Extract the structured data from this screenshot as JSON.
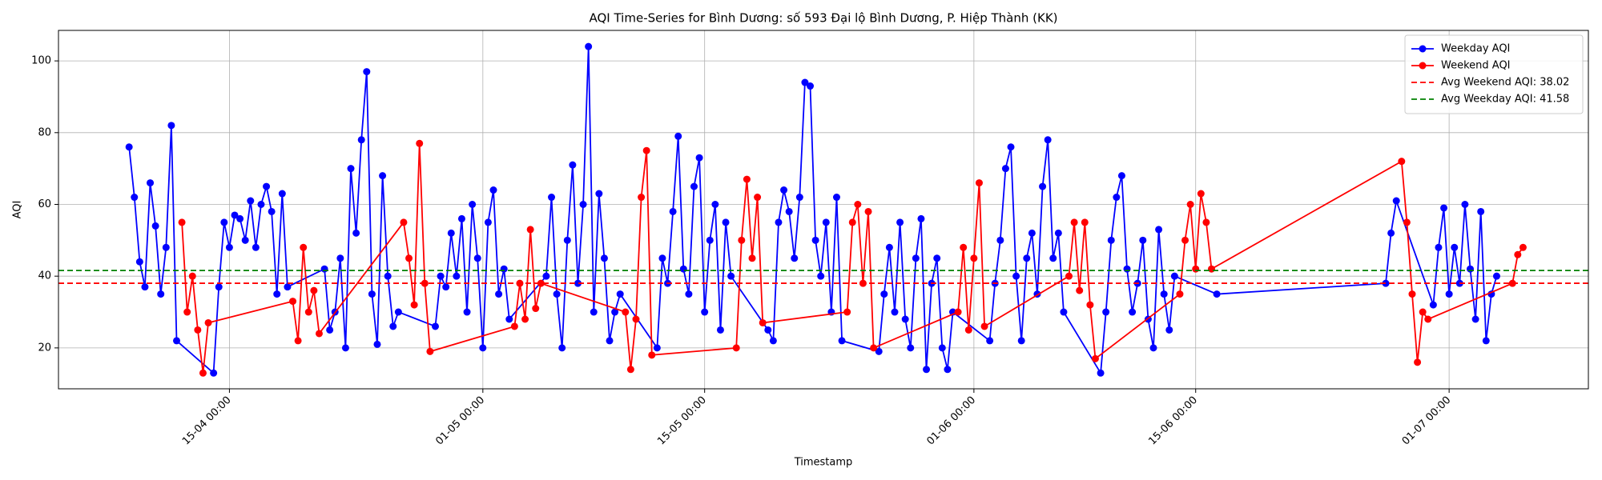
{
  "chart_data": {
    "type": "line",
    "title": "AQI Time-Series for Bình Dương: số 593 Đại lộ Bình Dương, P. Hiệp Thành (KK)",
    "xlabel": "Timestamp",
    "ylabel": "AQI",
    "xlim": [
      "04-04 05:00",
      "09-07 19:00"
    ],
    "xticks": [
      "15-04 00:00",
      "01-05 00:00",
      "15-05 00:00",
      "01-06 00:00",
      "15-06 00:00",
      "01-07 00:00"
    ],
    "ylim": [
      8.6,
      108.5
    ],
    "yticks": [
      20,
      40,
      60,
      80,
      100
    ],
    "grid": true,
    "legend": "upper right",
    "series": [
      {
        "name": "Weekday AQI",
        "color": "#0000ff",
        "x": [
          "08-04 16:00",
          "09-04 00:00",
          "09-04 08:00",
          "09-04 16:00",
          "10-04 00:00",
          "10-04 08:00",
          "10-04 16:00",
          "11-04 00:00",
          "11-04 08:00",
          "11-04 16:00",
          "14-04 00:00",
          "14-04 08:00",
          "14-04 16:00",
          "15-04 00:00",
          "15-04 08:00",
          "15-04 16:00",
          "16-04 00:00",
          "16-04 08:00",
          "16-04 16:00",
          "17-04 00:00",
          "17-04 08:00",
          "17-04 16:00",
          "18-04 00:00",
          "18-04 08:00",
          "18-04 16:00",
          "21-04 00:00",
          "21-04 08:00",
          "21-04 16:00",
          "22-04 00:00",
          "22-04 08:00",
          "22-04 16:00",
          "23-04 00:00",
          "23-04 08:00",
          "23-04 16:00",
          "24-04 00:00",
          "24-04 08:00",
          "24-04 16:00",
          "25-04 00:00",
          "25-04 08:00",
          "25-04 16:00",
          "28-04 00:00",
          "28-04 08:00",
          "28-04 16:00",
          "29-04 00:00",
          "29-04 08:00",
          "29-04 16:00",
          "30-04 00:00",
          "30-04 08:00",
          "30-04 16:00",
          "01-05 00:00",
          "01-05 08:00",
          "01-05 16:00",
          "02-05 00:00",
          "02-05 08:00",
          "02-05 16:00",
          "05-05 00:00",
          "05-05 08:00",
          "05-05 16:00",
          "06-05 00:00",
          "06-05 08:00",
          "06-05 16:00",
          "07-05 00:00",
          "07-05 08:00",
          "07-05 16:00",
          "08-05 00:00",
          "08-05 08:00",
          "08-05 16:00",
          "09-05 00:00",
          "09-05 08:00",
          "09-05 16:00",
          "12-05 00:00",
          "12-05 08:00",
          "12-05 16:00",
          "13-05 00:00",
          "13-05 08:00",
          "13-05 16:00",
          "14-05 00:00",
          "14-05 08:00",
          "14-05 16:00",
          "15-05 00:00",
          "15-05 08:00",
          "15-05 16:00",
          "16-05 00:00",
          "16-05 08:00",
          "16-05 16:00",
          "19-05 00:00",
          "19-05 08:00",
          "19-05 16:00",
          "20-05 00:00",
          "20-05 08:00",
          "20-05 16:00",
          "21-05 00:00",
          "21-05 08:00",
          "21-05 16:00",
          "22-05 00:00",
          "22-05 08:00",
          "22-05 16:00",
          "23-05 00:00",
          "23-05 08:00",
          "23-05 16:00",
          "26-05 00:00",
          "26-05 08:00",
          "26-05 16:00",
          "27-05 00:00",
          "27-05 08:00",
          "27-05 16:00",
          "28-05 00:00",
          "28-05 08:00",
          "28-05 16:00",
          "29-05 00:00",
          "29-05 08:00",
          "29-05 16:00",
          "30-05 00:00",
          "30-05 08:00",
          "30-05 16:00",
          "02-06 00:00",
          "02-06 08:00",
          "02-06 16:00",
          "03-06 00:00",
          "03-06 08:00",
          "03-06 16:00",
          "04-06 00:00",
          "04-06 08:00",
          "04-06 16:00",
          "05-06 00:00",
          "05-06 08:00",
          "05-06 16:00",
          "06-06 00:00",
          "06-06 08:00",
          "06-06 16:00",
          "09-06 00:00",
          "09-06 08:00",
          "09-06 16:00",
          "10-06 00:00",
          "10-06 08:00",
          "10-06 16:00",
          "11-06 00:00",
          "11-06 08:00",
          "11-06 16:00",
          "12-06 00:00",
          "12-06 08:00",
          "12-06 16:00",
          "13-06 00:00",
          "13-06 08:00",
          "13-06 16:00",
          "16-06 08:00",
          "27-06 00:00",
          "27-06 08:00",
          "27-06 16:00",
          "30-06 00:00",
          "30-06 08:00",
          "30-06 16:00",
          "01-07 00:00",
          "01-07 08:00",
          "01-07 16:00",
          "02-07 00:00",
          "02-07 08:00",
          "02-07 16:00",
          "03-07 00:00",
          "03-07 08:00",
          "03-07 16:00",
          "04-07 00:00"
        ],
        "values": [
          76,
          62,
          44,
          37,
          66,
          54,
          35,
          48,
          82,
          22,
          13,
          37,
          55,
          48,
          57,
          56,
          50,
          61,
          48,
          60,
          65,
          58,
          35,
          63,
          37,
          42,
          25,
          30,
          45,
          20,
          70,
          52,
          78,
          97,
          35,
          21,
          68,
          40,
          26,
          30,
          26,
          40,
          37,
          52,
          40,
          56,
          30,
          60,
          45,
          20,
          55,
          64,
          35,
          42,
          28,
          40,
          62,
          35,
          20,
          50,
          71,
          38,
          60,
          104,
          30,
          63,
          45,
          22,
          30,
          35,
          20,
          45,
          38,
          58,
          79,
          42,
          35,
          65,
          73,
          30,
          50,
          60,
          25,
          55,
          40,
          25,
          22,
          55,
          64,
          58,
          45,
          62,
          94,
          93,
          50,
          40,
          55,
          30,
          62,
          22,
          19,
          35,
          48,
          30,
          55,
          28,
          20,
          45,
          56,
          14,
          38,
          45,
          20,
          14,
          30,
          22,
          38,
          50,
          70,
          76,
          40,
          22,
          45,
          52,
          35,
          65,
          78,
          45,
          52,
          30,
          13,
          30,
          50,
          62,
          68,
          42,
          30,
          38,
          50,
          28,
          20,
          53,
          35,
          25,
          40,
          35,
          38,
          52,
          61,
          32,
          48,
          59,
          35,
          48,
          38,
          60,
          42,
          28,
          58,
          22,
          35,
          40
        ]
      },
      {
        "name": "Weekend AQI",
        "color": "#ff0000",
        "x": [
          "12-04 00:00",
          "12-04 08:00",
          "12-04 16:00",
          "13-04 00:00",
          "13-04 08:00",
          "13-04 16:00",
          "19-04 00:00",
          "19-04 08:00",
          "19-04 16:00",
          "20-04 00:00",
          "20-04 08:00",
          "20-04 16:00",
          "26-04 00:00",
          "26-04 08:00",
          "26-04 16:00",
          "27-04 00:00",
          "27-04 08:00",
          "27-04 16:00",
          "03-05 00:00",
          "03-05 08:00",
          "03-05 16:00",
          "04-05 00:00",
          "04-05 08:00",
          "04-05 16:00",
          "10-05 00:00",
          "10-05 08:00",
          "10-05 16:00",
          "11-05 00:00",
          "11-05 08:00",
          "11-05 16:00",
          "17-05 00:00",
          "17-05 08:00",
          "17-05 16:00",
          "18-05 00:00",
          "18-05 08:00",
          "18-05 16:00",
          "24-05 00:00",
          "24-05 08:00",
          "24-05 16:00",
          "25-05 00:00",
          "25-05 08:00",
          "25-05 16:00",
          "31-05 00:00",
          "31-05 08:00",
          "31-05 16:00",
          "01-06 00:00",
          "01-06 08:00",
          "01-06 16:00",
          "07-06 00:00",
          "07-06 08:00",
          "07-06 16:00",
          "08-06 00:00",
          "08-06 08:00",
          "08-06 16:00",
          "14-06 00:00",
          "14-06 08:00",
          "14-06 16:00",
          "15-06 00:00",
          "15-06 08:00",
          "15-06 16:00",
          "16-06 00:00",
          "28-06 00:00",
          "28-06 08:00",
          "28-06 16:00",
          "29-06 00:00",
          "29-06 08:00",
          "29-06 16:00",
          "05-07 00:00",
          "05-07 08:00",
          "05-07 16:00"
        ],
        "values": [
          55,
          30,
          40,
          25,
          13,
          27,
          33,
          22,
          48,
          30,
          36,
          24,
          55,
          45,
          32,
          77,
          38,
          19,
          26,
          38,
          28,
          53,
          31,
          38,
          30,
          14,
          28,
          62,
          75,
          18,
          20,
          50,
          67,
          45,
          62,
          27,
          30,
          55,
          60,
          38,
          58,
          20,
          30,
          48,
          25,
          45,
          66,
          26,
          40,
          55,
          36,
          55,
          32,
          17,
          35,
          50,
          60,
          42,
          63,
          55,
          42,
          72,
          55,
          35,
          16,
          30,
          28,
          38,
          46,
          48
        ]
      }
    ],
    "hlines": [
      {
        "name": "Avg Weekend AQI: 38.02",
        "value": 38.02,
        "color": "#ff0000"
      },
      {
        "name": "Avg Weekday AQI: 41.58",
        "value": 41.58,
        "color": "#008000"
      }
    ]
  }
}
